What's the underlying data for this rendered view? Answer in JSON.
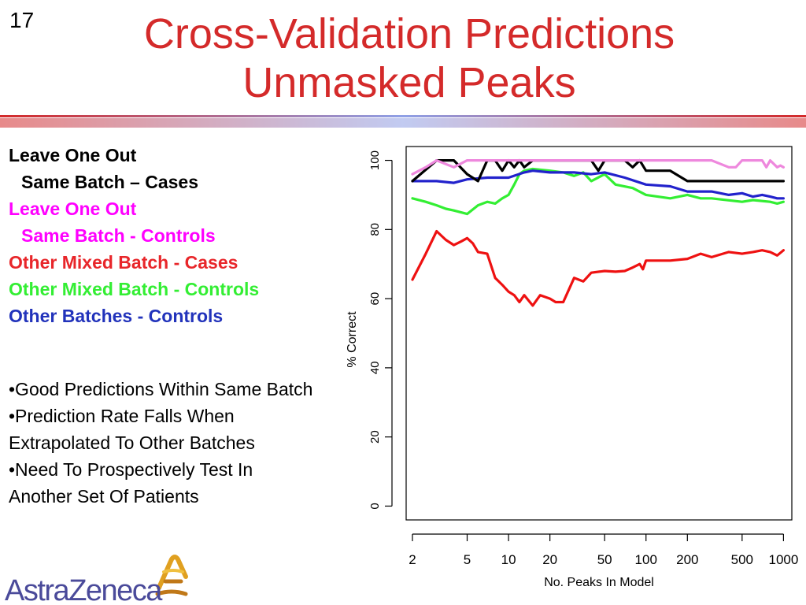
{
  "slide": {
    "number": "17",
    "title_line1": "Cross-Validation Predictions",
    "title_line2": "Unmasked Peaks"
  },
  "legend": [
    {
      "text": "Leave One Out",
      "color": "#000000",
      "indent": false
    },
    {
      "text": "Same Batch – Cases",
      "color": "#000000",
      "indent": true
    },
    {
      "text": "Leave One Out",
      "color": "#ff00ff",
      "indent": false
    },
    {
      "text": "Same Batch - Controls",
      "color": "#ff00ff",
      "indent": true
    },
    {
      "text": "Other Mixed Batch - Cases",
      "color": "#e8262a",
      "indent": false
    },
    {
      "text": "Other Mixed Batch - Controls",
      "color": "#33ee33",
      "indent": false
    },
    {
      "text": "Other Batches - Controls",
      "color": "#2233bb",
      "indent": false
    }
  ],
  "bullets": [
    "•Good Predictions Within Same Batch",
    "•Prediction Rate Falls When",
    "Extrapolated To Other Batches",
    "•Need To Prospectively Test In",
    "Another Set Of Patients"
  ],
  "logo": {
    "text": "AstraZeneca"
  },
  "colors": {
    "title": "#d42a2a",
    "rule_left": "#d42a2a",
    "rule_right": "#8fa0e6"
  },
  "chart_data": {
    "type": "line",
    "xlabel": "No. Peaks In Model",
    "ylabel": "% Correct",
    "x_scale": "log",
    "xlim": [
      1.8,
      1150
    ],
    "ylim": [
      -4,
      104
    ],
    "x_ticks": [
      2,
      5,
      10,
      20,
      50,
      100,
      200,
      500,
      1000
    ],
    "x_tick_labels": [
      "2",
      "5",
      "10",
      "20",
      "50",
      "100",
      "200",
      "500",
      "1000"
    ],
    "y_ticks": [
      0,
      20,
      40,
      60,
      80,
      100
    ],
    "y_tick_labels": [
      "0",
      "20",
      "40",
      "60",
      "80",
      "100"
    ],
    "grid": false,
    "series": [
      {
        "name": "Other Mixed Batch - Cases",
        "color": "#ee1111",
        "points": [
          [
            2,
            65.5
          ],
          [
            2.5,
            73
          ],
          [
            3,
            79.5
          ],
          [
            3.5,
            77
          ],
          [
            4,
            75.5
          ],
          [
            4.5,
            76.5
          ],
          [
            5,
            77.5
          ],
          [
            5.5,
            76
          ],
          [
            6,
            73.5
          ],
          [
            7,
            73
          ],
          [
            8,
            66
          ],
          [
            9,
            64
          ],
          [
            10,
            62
          ],
          [
            11,
            61
          ],
          [
            12,
            59
          ],
          [
            13,
            61
          ],
          [
            15,
            58
          ],
          [
            17,
            61
          ],
          [
            20,
            60
          ],
          [
            22,
            59
          ],
          [
            25,
            59
          ],
          [
            30,
            66
          ],
          [
            35,
            65
          ],
          [
            40,
            67.5
          ],
          [
            50,
            68
          ],
          [
            60,
            67.8
          ],
          [
            70,
            68
          ],
          [
            80,
            69
          ],
          [
            90,
            70
          ],
          [
            95,
            68.5
          ],
          [
            100,
            71
          ],
          [
            150,
            71
          ],
          [
            200,
            71.5
          ],
          [
            250,
            73
          ],
          [
            300,
            72
          ],
          [
            400,
            73.5
          ],
          [
            500,
            73
          ],
          [
            600,
            73.5
          ],
          [
            700,
            74
          ],
          [
            800,
            73.5
          ],
          [
            900,
            72.5
          ],
          [
            1000,
            74
          ]
        ]
      },
      {
        "name": "Other Mixed Batch - Controls",
        "color": "#33ee33",
        "points": [
          [
            2,
            89
          ],
          [
            2.5,
            88
          ],
          [
            3,
            87
          ],
          [
            3.5,
            86
          ],
          [
            4,
            85.5
          ],
          [
            5,
            84.5
          ],
          [
            6,
            87
          ],
          [
            7,
            88
          ],
          [
            8,
            87.5
          ],
          [
            9,
            89
          ],
          [
            10,
            90
          ],
          [
            11,
            93
          ],
          [
            12,
            96
          ],
          [
            13,
            97
          ],
          [
            15,
            97.5
          ],
          [
            20,
            97
          ],
          [
            25,
            96.5
          ],
          [
            30,
            95.5
          ],
          [
            35,
            96.5
          ],
          [
            40,
            94
          ],
          [
            50,
            96
          ],
          [
            60,
            93
          ],
          [
            80,
            92
          ],
          [
            100,
            90
          ],
          [
            150,
            89
          ],
          [
            200,
            90
          ],
          [
            250,
            89
          ],
          [
            300,
            89
          ],
          [
            500,
            88
          ],
          [
            600,
            88.5
          ],
          [
            800,
            88
          ],
          [
            900,
            87.5
          ],
          [
            1000,
            88
          ]
        ]
      },
      {
        "name": "Other Batches - Controls",
        "color": "#2222cc",
        "points": [
          [
            2,
            94
          ],
          [
            3,
            94
          ],
          [
            4,
            93.5
          ],
          [
            5,
            94.5
          ],
          [
            7,
            95
          ],
          [
            10,
            95
          ],
          [
            13,
            96.5
          ],
          [
            15,
            97
          ],
          [
            20,
            96.5
          ],
          [
            30,
            96.5
          ],
          [
            40,
            96
          ],
          [
            50,
            96.5
          ],
          [
            70,
            95
          ],
          [
            100,
            93
          ],
          [
            150,
            92.5
          ],
          [
            200,
            91
          ],
          [
            300,
            91
          ],
          [
            400,
            90
          ],
          [
            500,
            90.5
          ],
          [
            600,
            89.5
          ],
          [
            700,
            90
          ],
          [
            800,
            89.5
          ],
          [
            900,
            89
          ],
          [
            1000,
            89
          ]
        ]
      },
      {
        "name": "Leave One Out Same Batch – Cases",
        "color": "#000000",
        "points": [
          [
            2,
            94
          ],
          [
            3,
            100
          ],
          [
            4,
            100
          ],
          [
            5,
            96
          ],
          [
            6,
            94
          ],
          [
            7,
            100
          ],
          [
            8,
            100
          ],
          [
            9,
            97
          ],
          [
            10,
            100
          ],
          [
            11,
            98
          ],
          [
            12,
            100
          ],
          [
            13,
            98
          ],
          [
            15,
            100
          ],
          [
            40,
            100
          ],
          [
            45,
            97
          ],
          [
            50,
            100
          ],
          [
            60,
            100
          ],
          [
            70,
            100
          ],
          [
            80,
            98
          ],
          [
            90,
            100
          ],
          [
            100,
            97
          ],
          [
            150,
            97
          ],
          [
            200,
            94
          ],
          [
            300,
            94
          ],
          [
            500,
            94
          ],
          [
            700,
            94
          ],
          [
            1000,
            94
          ]
        ]
      },
      {
        "name": "Leave One Out Same Batch - Controls",
        "color": "#ee88dd",
        "points": [
          [
            2,
            96
          ],
          [
            2.5,
            98
          ],
          [
            3,
            100
          ],
          [
            4,
            98
          ],
          [
            5,
            100
          ],
          [
            10,
            100
          ],
          [
            20,
            100
          ],
          [
            50,
            100
          ],
          [
            100,
            100
          ],
          [
            200,
            100
          ],
          [
            300,
            100
          ],
          [
            400,
            98
          ],
          [
            450,
            98
          ],
          [
            500,
            100
          ],
          [
            600,
            100
          ],
          [
            700,
            100
          ],
          [
            750,
            98
          ],
          [
            800,
            100
          ],
          [
            900,
            98
          ],
          [
            950,
            98.5
          ],
          [
            1000,
            98
          ]
        ]
      }
    ]
  }
}
